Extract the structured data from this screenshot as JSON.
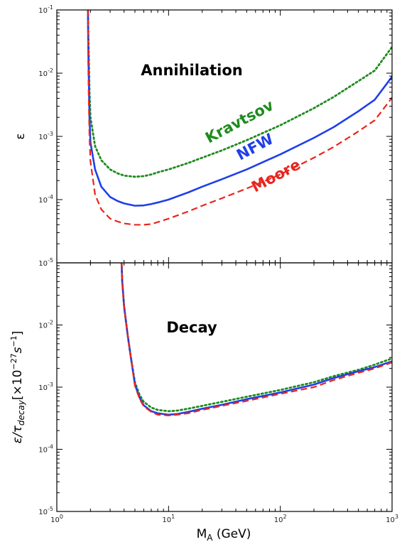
{
  "chart_data": [
    {
      "type": "line",
      "title": "Annihilation",
      "xlabel": "M_A (GeV)",
      "ylabel": "ε",
      "x_scale": "log",
      "y_scale": "log",
      "xlim": [
        1,
        1000
      ],
      "ylim": [
        1e-05,
        0.1
      ],
      "series": [
        {
          "name": "Kravtsov",
          "color": "#1e8b1e",
          "style": "dotted",
          "x": [
            1.9,
            1.91,
            1.93,
            1.96,
            2.0,
            2.2,
            2.5,
            3.0,
            3.5,
            4.0,
            5.0,
            6.0,
            7.0,
            8.0,
            10.0,
            15.0,
            20.0,
            30.0,
            50.0,
            100.0,
            200.0,
            300.0,
            500.0,
            700.0,
            1000.0
          ],
          "y": [
            0.1,
            0.05,
            0.02,
            0.005,
            0.002,
            0.0007,
            0.00042,
            0.0003,
            0.00026,
            0.00024,
            0.00023,
            0.000235,
            0.00025,
            0.00027,
            0.0003,
            0.00038,
            0.00046,
            0.0006,
            0.00087,
            0.0015,
            0.0028,
            0.0042,
            0.0075,
            0.011,
            0.026
          ]
        },
        {
          "name": "NFW",
          "color": "#1f3fe8",
          "style": "solid",
          "x": [
            1.9,
            1.91,
            1.93,
            1.96,
            2.0,
            2.2,
            2.5,
            3.0,
            3.5,
            4.0,
            5.0,
            6.0,
            7.0,
            8.0,
            10.0,
            15.0,
            20.0,
            30.0,
            50.0,
            100.0,
            200.0,
            300.0,
            500.0,
            700.0,
            1000.0
          ],
          "y": [
            0.1,
            0.03,
            0.01,
            0.002,
            0.0008,
            0.0003,
            0.00016,
            0.00011,
            9.5e-05,
            8.7e-05,
            8e-05,
            8.1e-05,
            8.5e-05,
            9e-05,
            0.0001,
            0.00013,
            0.00016,
            0.00021,
            0.0003,
            0.00052,
            0.00095,
            0.0014,
            0.0025,
            0.0038,
            0.0088
          ]
        },
        {
          "name": "Moore",
          "color": "#e8261e",
          "style": "dashed",
          "x": [
            1.9,
            1.91,
            1.93,
            1.96,
            2.0,
            2.2,
            2.5,
            3.0,
            3.5,
            4.0,
            5.0,
            6.0,
            7.0,
            8.0,
            10.0,
            15.0,
            20.0,
            30.0,
            50.0,
            100.0,
            200.0,
            300.0,
            500.0,
            700.0,
            1000.0
          ],
          "y": [
            0.1,
            0.015,
            0.004,
            0.001,
            0.0004,
            0.00012,
            7e-05,
            5e-05,
            4.5e-05,
            4.2e-05,
            4e-05,
            4e-05,
            4.1e-05,
            4.4e-05,
            5e-05,
            6.5e-05,
            8e-05,
            0.000105,
            0.00015,
            0.00025,
            0.00046,
            0.00068,
            0.0012,
            0.0018,
            0.0041
          ]
        }
      ],
      "annotations": [
        "Kravtsov",
        "NFW",
        "Moore"
      ]
    },
    {
      "type": "line",
      "title": "Decay",
      "xlabel": "M_A (GeV)",
      "ylabel": "ε/τ_decay [×10^-27 s^-1]",
      "x_scale": "log",
      "y_scale": "log",
      "xlim": [
        1,
        1000
      ],
      "ylim": [
        1e-05,
        0.1
      ],
      "series": [
        {
          "name": "Kravtsov",
          "color": "#1e8b1e",
          "style": "dotted",
          "x": [
            3.8,
            3.85,
            4.0,
            4.3,
            4.6,
            5.0,
            5.5,
            6.0,
            7.0,
            8.0,
            10.0,
            12.0,
            15.0,
            20.0,
            30.0,
            50.0,
            100.0,
            200.0,
            300.0,
            500.0,
            700.0,
            1000.0
          ],
          "y": [
            0.1,
            0.05,
            0.02,
            0.007,
            0.003,
            0.0012,
            0.00075,
            0.00058,
            0.00047,
            0.00043,
            0.00041,
            0.00042,
            0.00045,
            0.0005,
            0.00058,
            0.0007,
            0.0009,
            0.0012,
            0.0015,
            0.0019,
            0.0023,
            0.0029
          ]
        },
        {
          "name": "NFW",
          "color": "#1f3fe8",
          "style": "solid",
          "x": [
            3.8,
            3.85,
            4.0,
            4.3,
            4.6,
            5.0,
            5.5,
            6.0,
            7.0,
            8.0,
            10.0,
            12.0,
            15.0,
            20.0,
            30.0,
            50.0,
            100.0,
            200.0,
            300.0,
            500.0,
            700.0,
            1000.0
          ],
          "y": [
            0.1,
            0.05,
            0.02,
            0.007,
            0.003,
            0.0011,
            0.00068,
            0.00051,
            0.00041,
            0.00038,
            0.00036,
            0.00037,
            0.0004,
            0.00045,
            0.00052,
            0.00064,
            0.00082,
            0.0011,
            0.0014,
            0.0018,
            0.0021,
            0.0026
          ]
        },
        {
          "name": "Moore",
          "color": "#e8261e",
          "style": "dashed",
          "x": [
            3.8,
            3.85,
            4.0,
            4.3,
            4.6,
            5.0,
            5.5,
            6.0,
            7.0,
            8.0,
            10.0,
            12.0,
            15.0,
            20.0,
            30.0,
            50.0,
            100.0,
            200.0,
            300.0,
            500.0,
            700.0,
            1000.0
          ],
          "y": [
            0.1,
            0.05,
            0.02,
            0.007,
            0.003,
            0.00105,
            0.00065,
            0.00049,
            0.0004,
            0.00036,
            0.00035,
            0.00036,
            0.00038,
            0.00043,
            0.0005,
            0.0006,
            0.00078,
            0.001,
            0.0013,
            0.0017,
            0.002,
            0.0025
          ]
        }
      ]
    }
  ],
  "x_ticks": [
    {
      "base": "10",
      "exp": "0"
    },
    {
      "base": "10",
      "exp": "1"
    },
    {
      "base": "10",
      "exp": "2"
    },
    {
      "base": "10",
      "exp": "3"
    }
  ],
  "y_ticks": [
    {
      "base": "10",
      "exp": "-5"
    },
    {
      "base": "10",
      "exp": "-4"
    },
    {
      "base": "10",
      "exp": "-3"
    },
    {
      "base": "10",
      "exp": "-2"
    },
    {
      "base": "10",
      "exp": "-1"
    }
  ],
  "labels": {
    "xlabel_main": "M",
    "xlabel_sub": "A",
    "xlabel_unit": " (GeV)",
    "top_ylabel": "ε",
    "bottom_ylabel_eps": "ε/τ",
    "bottom_ylabel_sub": "decay",
    "bottom_ylabel_bracket": "[×10",
    "bottom_ylabel_exp1": "−27",
    "bottom_ylabel_s": "s",
    "bottom_ylabel_exp2": "−1",
    "bottom_ylabel_close": "]",
    "top_title": "Annihilation",
    "bottom_title": "Decay",
    "kravtsov_label": "Kravtsov",
    "nfw_label": "NFW",
    "moore_label": "Moore"
  }
}
